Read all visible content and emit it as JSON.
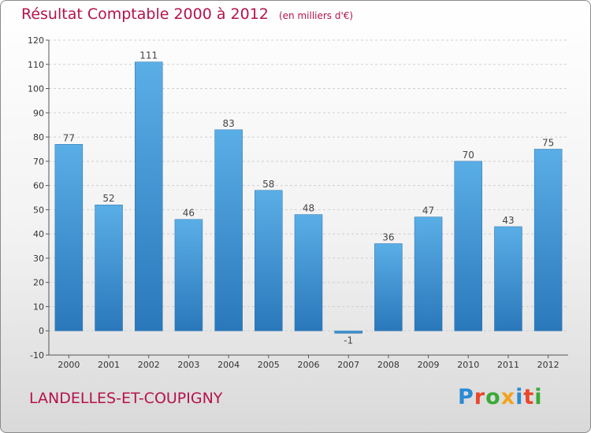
{
  "title": "Résultat Comptable 2000 à 2012",
  "subtitle": "(en milliers d'€)",
  "commune": "LANDELLES-ET-COUPIGNY",
  "logo": {
    "text": "Proxiti",
    "colors": [
      "#2a8ad4",
      "#e8472c",
      "#3aa935",
      "#f2a31b",
      "#2a8ad4",
      "#e8472c",
      "#3aa935"
    ]
  },
  "colors": {
    "accent": "#b5124c",
    "bar": "#4c9fdc",
    "bar_dark": "#2f7fc0"
  },
  "chart_data": {
    "type": "bar",
    "title": "Résultat Comptable 2000 à 2012",
    "xlabel": "",
    "ylabel": "(en milliers d'€)",
    "categories": [
      "2000",
      "2001",
      "2002",
      "2003",
      "2004",
      "2005",
      "2006",
      "2007",
      "2008",
      "2009",
      "2010",
      "2011",
      "2012"
    ],
    "values": [
      77,
      52,
      111,
      46,
      83,
      58,
      48,
      -1,
      36,
      47,
      70,
      43,
      75
    ],
    "labels": [
      "77",
      "52",
      "111",
      "46",
      "83",
      "58",
      "48",
      "-1",
      "36",
      "47",
      "70",
      "43",
      "75"
    ],
    "yticks": [
      -10,
      0,
      10,
      20,
      30,
      40,
      50,
      60,
      70,
      80,
      90,
      100,
      110,
      120
    ],
    "ylim": [
      -10,
      120
    ],
    "grid": true
  }
}
